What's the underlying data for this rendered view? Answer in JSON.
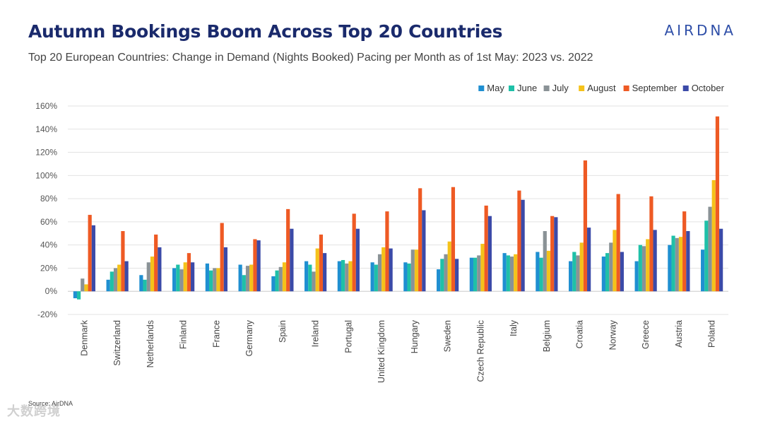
{
  "header": {
    "title": "Autumn Bookings Boom Across Top 20 Countries",
    "subtitle": "Top 20 European Countries: Change in Demand (Nights Booked) Pacing per Month as of 1st May: 2023 vs. 2022",
    "logo": "AIRDNA"
  },
  "footer": {
    "source": "Source: AirDNA",
    "watermark": "大数跨境"
  },
  "chart_data": {
    "type": "bar",
    "title": "Autumn Bookings Boom Across Top 20 Countries",
    "xlabel": "",
    "ylabel": "",
    "ylim": [
      -20,
      160
    ],
    "yticks": [
      -20,
      0,
      20,
      40,
      60,
      80,
      100,
      120,
      140,
      160
    ],
    "ytick_labels": [
      "-20%",
      "0%",
      "20%",
      "40%",
      "60%",
      "80%",
      "100%",
      "120%",
      "140%",
      "160%"
    ],
    "grid": true,
    "legend_position": "top-right",
    "categories": [
      "Denmark",
      "Switzerland",
      "Netherlands",
      "Finland",
      "France",
      "Germany",
      "Spain",
      "Ireland",
      "Portugal",
      "United Kingdom",
      "Hungary",
      "Sweden",
      "Czech Republic",
      "Italy",
      "Belgium",
      "Croatia",
      "Norway",
      "Greece",
      "Austria",
      "Poland"
    ],
    "series": [
      {
        "name": "May",
        "color": "#1f8fd1",
        "values": [
          -6,
          10,
          14,
          20,
          24,
          23,
          13,
          26,
          26,
          25,
          25,
          19,
          29,
          33,
          34,
          26,
          30,
          26,
          40,
          36
        ]
      },
      {
        "name": "June",
        "color": "#1fc0a8",
        "values": [
          -7,
          17,
          10,
          23,
          18,
          14,
          18,
          23,
          27,
          23,
          24,
          28,
          29,
          31,
          29,
          34,
          33,
          40,
          48,
          61
        ]
      },
      {
        "name": "July",
        "color": "#8a9296",
        "values": [
          11,
          20,
          25,
          19,
          20,
          22,
          21,
          17,
          24,
          32,
          36,
          32,
          31,
          30,
          52,
          31,
          42,
          39,
          46,
          73
        ]
      },
      {
        "name": "August",
        "color": "#f5c21a",
        "values": [
          6,
          23,
          30,
          25,
          20,
          23,
          25,
          37,
          26,
          38,
          36,
          43,
          41,
          32,
          35,
          42,
          53,
          45,
          47,
          96
        ]
      },
      {
        "name": "September",
        "color": "#ee5a24",
        "values": [
          66,
          52,
          49,
          33,
          59,
          45,
          71,
          49,
          67,
          69,
          89,
          90,
          74,
          87,
          65,
          113,
          84,
          82,
          69,
          151
        ]
      },
      {
        "name": "October",
        "color": "#3b4aa8",
        "values": [
          57,
          26,
          38,
          25,
          38,
          44,
          54,
          33,
          54,
          37,
          70,
          28,
          65,
          79,
          64,
          55,
          34,
          53,
          52,
          54
        ]
      }
    ]
  }
}
